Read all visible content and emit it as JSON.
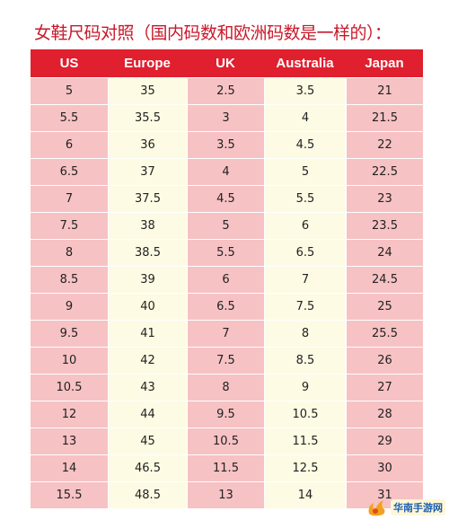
{
  "title": "女鞋尺码对照（国内码数和欧洲码数是一样的）：",
  "watermark": "华南手游网",
  "table": {
    "headers": [
      "US",
      "Europe",
      "UK",
      "Australia",
      "Japan"
    ],
    "rows": [
      [
        "5",
        "35",
        "2.5",
        "3.5",
        "21"
      ],
      [
        "5.5",
        "35.5",
        "3",
        "4",
        "21.5"
      ],
      [
        "6",
        "36",
        "3.5",
        "4.5",
        "22"
      ],
      [
        "6.5",
        "37",
        "4",
        "5",
        "22.5"
      ],
      [
        "7",
        "37.5",
        "4.5",
        "5.5",
        "23"
      ],
      [
        "7.5",
        "38",
        "5",
        "6",
        "23.5"
      ],
      [
        "8",
        "38.5",
        "5.5",
        "6.5",
        "24"
      ],
      [
        "8.5",
        "39",
        "6",
        "7",
        "24.5"
      ],
      [
        "9",
        "40",
        "6.5",
        "7.5",
        "25"
      ],
      [
        "9.5",
        "41",
        "7",
        "8",
        "25.5"
      ],
      [
        "10",
        "42",
        "7.5",
        "8.5",
        "26"
      ],
      [
        "10.5",
        "43",
        "8",
        "9",
        "27"
      ],
      [
        "12",
        "44",
        "9.5",
        "10.5",
        "28"
      ],
      [
        "13",
        "45",
        "10.5",
        "11.5",
        "29"
      ],
      [
        "14",
        "46.5",
        "11.5",
        "12.5",
        "30"
      ],
      [
        "15.5",
        "48.5",
        "13",
        "14",
        "31"
      ]
    ]
  },
  "colors": {
    "title": "#c8192a",
    "header_bg": "#e01f2f",
    "header_text": "#ffffff",
    "cell_pink": "#f7c2c4",
    "cell_cream": "#fdfbe4"
  }
}
